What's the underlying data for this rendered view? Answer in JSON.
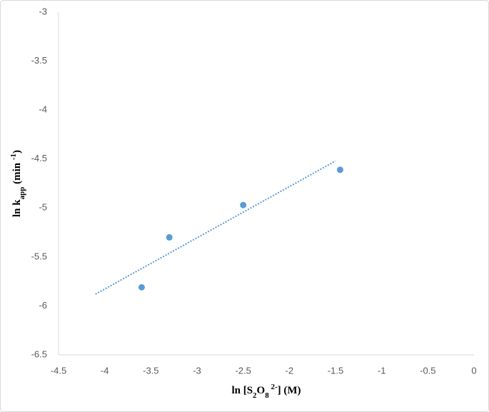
{
  "chart_data": {
    "type": "scatter",
    "x_label": [
      "ln [S",
      "2",
      "O",
      "8",
      " 2-",
      "] (M)"
    ],
    "y_label": [
      "ln  k",
      "app",
      " (min ",
      "-1",
      ")"
    ],
    "x": [
      -3.6,
      -3.3,
      -2.5,
      -1.45
    ],
    "values": [
      -5.81,
      -5.3,
      -4.97,
      -4.61
    ],
    "color": "#5b9bd5",
    "trendline": {
      "x": [
        -4.1,
        -1.5
      ],
      "values": [
        -5.88,
        -4.52
      ],
      "color": "#5b9bd5"
    },
    "xlim": [
      -4.5,
      0
    ],
    "xticks": [
      -4.5,
      -4,
      -3.5,
      -3,
      -2.5,
      -2,
      -1.5,
      -1,
      -0.5,
      0
    ],
    "ylim": [
      -6.5,
      -3
    ],
    "yticks": [
      -6.5,
      -6,
      -5.5,
      -5,
      -4.5,
      -4,
      -3.5,
      -3
    ],
    "grid": false
  }
}
